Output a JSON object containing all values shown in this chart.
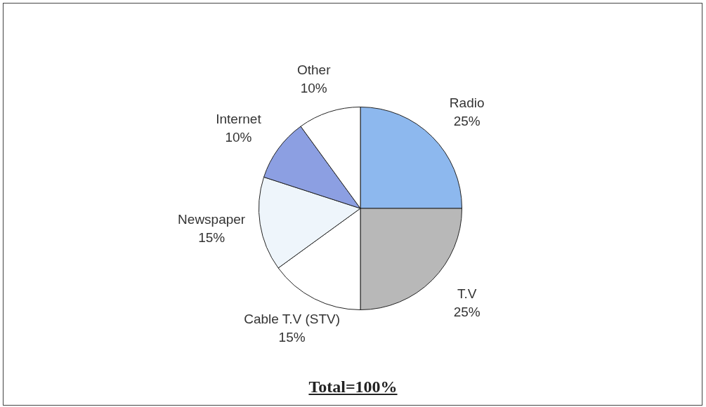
{
  "chart_data": {
    "type": "pie",
    "categories": [
      "Radio",
      "T.V",
      "Cable T.V (STV)",
      "Newspaper",
      "Internet",
      "Other"
    ],
    "values": [
      25,
      25,
      15,
      15,
      10,
      10
    ],
    "value_labels": [
      "25%",
      "25%",
      "15%",
      "15%",
      "10%",
      "10%"
    ],
    "colors": [
      "#8db8ee",
      "#b8b8b8",
      "#ffffff",
      "#eef5fb",
      "#8c9fe2",
      "#ffffff"
    ],
    "annotations": [
      "Total=100%"
    ]
  }
}
